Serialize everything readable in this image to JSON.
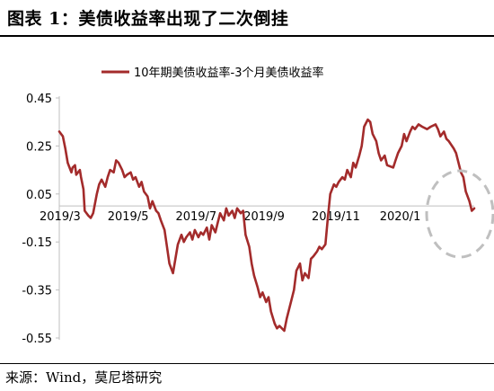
{
  "header": {
    "title": "图表 1：美债收益率出现了二次倒挂"
  },
  "footer": {
    "source": "来源：Wind，莫尼塔研究"
  },
  "colors": {
    "series": "#a32b2b",
    "axis": "#bfbfbf",
    "highlight": "#bfbfbf"
  },
  "chart_data": {
    "type": "line",
    "title": "",
    "xlabel": "",
    "ylabel": "",
    "ylim": [
      -0.55,
      0.45
    ],
    "y_ticks": [
      0.45,
      0.25,
      0.05,
      -0.15,
      -0.35,
      -0.55
    ],
    "y_tick_labels": [
      "0.45",
      "0.25",
      "0.05",
      "-0.15",
      "-0.35",
      "-0.55"
    ],
    "x_ticks": [
      "2019/3",
      "2019/5",
      "2019/7",
      "2019/9",
      "2019/11",
      "2020/1"
    ],
    "x_range": [
      "2019-03-01",
      "2020-02-07"
    ],
    "grid": false,
    "legend": {
      "position": "top-center",
      "entries": [
        "10年期美债收益率-3个月美债收益率"
      ]
    },
    "annotations": [
      {
        "type": "dashed-ellipse",
        "around": "2020/1-2020/2 end of series"
      }
    ],
    "series": [
      {
        "name": "10年期美债收益率-3个月美债收益率",
        "color": "#a32b2b",
        "points": [
          [
            "2019-03-01",
            0.31
          ],
          [
            "2019-03-04",
            0.29
          ],
          [
            "2019-03-06",
            0.24
          ],
          [
            "2019-03-08",
            0.18
          ],
          [
            "2019-03-11",
            0.14
          ],
          [
            "2019-03-12",
            0.16
          ],
          [
            "2019-03-14",
            0.17
          ],
          [
            "2019-03-15",
            0.13
          ],
          [
            "2019-03-18",
            0.15
          ],
          [
            "2019-03-19",
            0.12
          ],
          [
            "2019-03-21",
            0.07
          ],
          [
            "2019-03-22",
            -0.02
          ],
          [
            "2019-03-25",
            -0.04
          ],
          [
            "2019-03-27",
            -0.05
          ],
          [
            "2019-03-28",
            -0.04
          ],
          [
            "2019-03-29",
            -0.03
          ],
          [
            "2019-04-01",
            0.05
          ],
          [
            "2019-04-03",
            0.09
          ],
          [
            "2019-04-05",
            0.11
          ],
          [
            "2019-04-08",
            0.08
          ],
          [
            "2019-04-10",
            0.12
          ],
          [
            "2019-04-12",
            0.15
          ],
          [
            "2019-04-15",
            0.14
          ],
          [
            "2019-04-17",
            0.19
          ],
          [
            "2019-04-19",
            0.18
          ],
          [
            "2019-04-22",
            0.15
          ],
          [
            "2019-04-24",
            0.12
          ],
          [
            "2019-04-26",
            0.13
          ],
          [
            "2019-04-29",
            0.14
          ],
          [
            "2019-05-01",
            0.11
          ],
          [
            "2019-05-03",
            0.12
          ],
          [
            "2019-05-06",
            0.08
          ],
          [
            "2019-05-08",
            0.1
          ],
          [
            "2019-05-10",
            0.06
          ],
          [
            "2019-05-13",
            0.04
          ],
          [
            "2019-05-15",
            -0.01
          ],
          [
            "2019-05-17",
            0.02
          ],
          [
            "2019-05-20",
            -0.02
          ],
          [
            "2019-05-22",
            -0.03
          ],
          [
            "2019-05-24",
            -0.06
          ],
          [
            "2019-05-27",
            -0.1
          ],
          [
            "2019-05-29",
            -0.17
          ],
          [
            "2019-05-31",
            -0.24
          ],
          [
            "2019-06-03",
            -0.28
          ],
          [
            "2019-06-05",
            -0.22
          ],
          [
            "2019-06-07",
            -0.16
          ],
          [
            "2019-06-10",
            -0.12
          ],
          [
            "2019-06-12",
            -0.15
          ],
          [
            "2019-06-14",
            -0.13
          ],
          [
            "2019-06-17",
            -0.11
          ],
          [
            "2019-06-19",
            -0.14
          ],
          [
            "2019-06-21",
            -0.1
          ],
          [
            "2019-06-24",
            -0.13
          ],
          [
            "2019-06-26",
            -0.11
          ],
          [
            "2019-06-28",
            -0.12
          ],
          [
            "2019-07-01",
            -0.09
          ],
          [
            "2019-07-03",
            -0.14
          ],
          [
            "2019-07-05",
            -0.08
          ],
          [
            "2019-07-08",
            -0.11
          ],
          [
            "2019-07-10",
            -0.07
          ],
          [
            "2019-07-12",
            -0.03
          ],
          [
            "2019-07-15",
            -0.06
          ],
          [
            "2019-07-17",
            -0.01
          ],
          [
            "2019-07-19",
            -0.04
          ],
          [
            "2019-07-22",
            -0.02
          ],
          [
            "2019-07-24",
            -0.05
          ],
          [
            "2019-07-26",
            -0.01
          ],
          [
            "2019-07-29",
            -0.03
          ],
          [
            "2019-07-31",
            -0.02
          ],
          [
            "2019-08-02",
            -0.12
          ],
          [
            "2019-08-05",
            -0.17
          ],
          [
            "2019-08-07",
            -0.24
          ],
          [
            "2019-08-09",
            -0.29
          ],
          [
            "2019-08-12",
            -0.34
          ],
          [
            "2019-08-14",
            -0.38
          ],
          [
            "2019-08-16",
            -0.36
          ],
          [
            "2019-08-19",
            -0.4
          ],
          [
            "2019-08-21",
            -0.38
          ],
          [
            "2019-08-23",
            -0.44
          ],
          [
            "2019-08-26",
            -0.49
          ],
          [
            "2019-08-28",
            -0.51
          ],
          [
            "2019-08-30",
            -0.5
          ],
          [
            "2019-09-03",
            -0.52
          ],
          [
            "2019-09-05",
            -0.47
          ],
          [
            "2019-09-09",
            -0.39
          ],
          [
            "2019-09-11",
            -0.35
          ],
          [
            "2019-09-13",
            -0.27
          ],
          [
            "2019-09-16",
            -0.24
          ],
          [
            "2019-09-18",
            -0.31
          ],
          [
            "2019-09-20",
            -0.28
          ],
          [
            "2019-09-23",
            -0.3
          ],
          [
            "2019-09-25",
            -0.22
          ],
          [
            "2019-09-27",
            -0.21
          ],
          [
            "2019-09-30",
            -0.19
          ],
          [
            "2019-10-02",
            -0.17
          ],
          [
            "2019-10-04",
            -0.18
          ],
          [
            "2019-10-07",
            -0.16
          ],
          [
            "2019-10-09",
            -0.05
          ],
          [
            "2019-10-11",
            0.05
          ],
          [
            "2019-10-14",
            0.09
          ],
          [
            "2019-10-16",
            0.08
          ],
          [
            "2019-10-18",
            0.1
          ],
          [
            "2019-10-21",
            0.12
          ],
          [
            "2019-10-23",
            0.11
          ],
          [
            "2019-10-25",
            0.15
          ],
          [
            "2019-10-28",
            0.12
          ],
          [
            "2019-10-30",
            0.18
          ],
          [
            "2019-11-01",
            0.16
          ],
          [
            "2019-11-04",
            0.21
          ],
          [
            "2019-11-06",
            0.25
          ],
          [
            "2019-11-08",
            0.33
          ],
          [
            "2019-11-11",
            0.36
          ],
          [
            "2019-11-13",
            0.35
          ],
          [
            "2019-11-15",
            0.3
          ],
          [
            "2019-11-18",
            0.27
          ],
          [
            "2019-11-20",
            0.22
          ],
          [
            "2019-11-22",
            0.19
          ],
          [
            "2019-11-25",
            0.21
          ],
          [
            "2019-11-27",
            0.17
          ],
          [
            "2019-12-02",
            0.16
          ],
          [
            "2019-12-04",
            0.19
          ],
          [
            "2019-12-06",
            0.22
          ],
          [
            "2019-12-09",
            0.25
          ],
          [
            "2019-12-11",
            0.3
          ],
          [
            "2019-12-13",
            0.27
          ],
          [
            "2019-12-16",
            0.31
          ],
          [
            "2019-12-18",
            0.33
          ],
          [
            "2019-12-20",
            0.32
          ],
          [
            "2019-12-23",
            0.34
          ],
          [
            "2019-12-26",
            0.33
          ],
          [
            "2019-12-30",
            0.32
          ],
          [
            "2020-01-02",
            0.33
          ],
          [
            "2020-01-06",
            0.34
          ],
          [
            "2020-01-08",
            0.32
          ],
          [
            "2020-01-10",
            0.29
          ],
          [
            "2020-01-13",
            0.31
          ],
          [
            "2020-01-15",
            0.28
          ],
          [
            "2020-01-17",
            0.27
          ],
          [
            "2020-01-21",
            0.24
          ],
          [
            "2020-01-23",
            0.22
          ],
          [
            "2020-01-27",
            0.14
          ],
          [
            "2020-01-29",
            0.12
          ],
          [
            "2020-01-31",
            0.06
          ],
          [
            "2020-02-03",
            0.02
          ],
          [
            "2020-02-05",
            -0.02
          ],
          [
            "2020-02-07",
            -0.01
          ]
        ]
      }
    ]
  }
}
